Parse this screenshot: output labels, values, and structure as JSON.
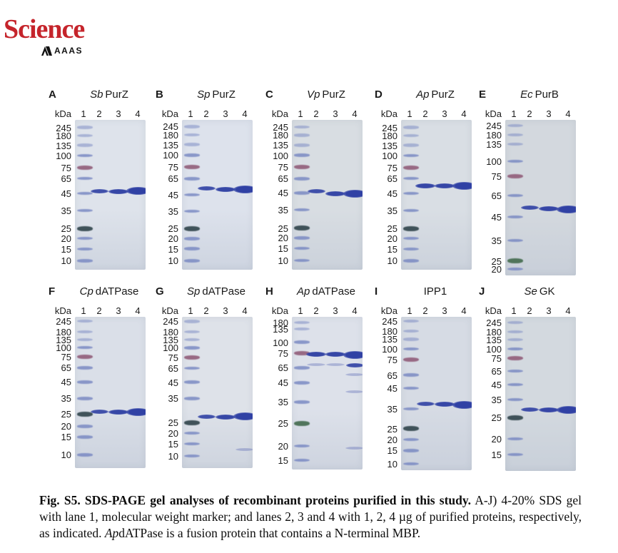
{
  "logo": {
    "title": "Science",
    "subtitle": "AAAS",
    "brand_color": "#c5242b"
  },
  "gel": {
    "units_label": "kDa",
    "lane_labels": [
      "1",
      "2",
      "3",
      "4"
    ],
    "colors": {
      "band_blue": "#3041a4",
      "ladder_blue": "#7585c1",
      "ladder_red": "#93607c",
      "ladder_dark": "#33474e",
      "ladder_green": "#466d51"
    },
    "panels": [
      {
        "id": "A",
        "organism": "Sb",
        "protein": "PurZ",
        "col": 0,
        "row": 0,
        "bg": "#dee3eb",
        "gel_height": 210,
        "ladder": [
          {
            "kda": "245",
            "f": 0.05
          },
          {
            "kda": "180",
            "f": 0.105
          },
          {
            "kda": "135",
            "f": 0.17
          },
          {
            "kda": "100",
            "f": 0.238
          },
          {
            "kda": "75",
            "f": 0.318,
            "c": "r"
          },
          {
            "kda": "65",
            "f": 0.39
          },
          {
            "kda": "45",
            "f": 0.49
          },
          {
            "kda": "35",
            "f": 0.605
          },
          {
            "kda": "25",
            "f": 0.724,
            "c": "d"
          },
          {
            "kda": "20",
            "f": 0.79
          },
          {
            "kda": "15",
            "f": 0.862
          },
          {
            "kda": "10",
            "f": 0.94
          }
        ],
        "bands": [
          {
            "lane": 2,
            "f": 0.478,
            "s": 1
          },
          {
            "lane": 3,
            "f": 0.478,
            "s": 2
          },
          {
            "lane": 4,
            "f": 0.475,
            "s": 3
          }
        ]
      },
      {
        "id": "B",
        "organism": "Sp",
        "protein": "PurZ",
        "col": 1,
        "row": 0,
        "bg": "#dde2ec",
        "gel_height": 210,
        "ladder": [
          {
            "kda": "245",
            "f": 0.045
          },
          {
            "kda": "180",
            "f": 0.1
          },
          {
            "kda": "135",
            "f": 0.165
          },
          {
            "kda": "100",
            "f": 0.235
          },
          {
            "kda": "75",
            "f": 0.315,
            "c": "r"
          },
          {
            "kda": "65",
            "f": 0.392
          },
          {
            "kda": "45",
            "f": 0.5
          },
          {
            "kda": "35",
            "f": 0.61
          },
          {
            "kda": "25",
            "f": 0.726,
            "c": "d"
          },
          {
            "kda": "20",
            "f": 0.792
          },
          {
            "kda": "15",
            "f": 0.86
          },
          {
            "kda": "10",
            "f": 0.94
          }
        ],
        "bands": [
          {
            "lane": 2,
            "f": 0.455,
            "s": 1
          },
          {
            "lane": 3,
            "f": 0.462,
            "s": 2
          },
          {
            "lane": 4,
            "f": 0.462,
            "s": 3
          }
        ]
      },
      {
        "id": "C",
        "organism": "Vp",
        "protein": "PurZ",
        "col": 2,
        "row": 0,
        "bg": "#d8dde2",
        "gel_height": 210,
        "ladder": [
          {
            "kda": "245",
            "f": 0.048
          },
          {
            "kda": "180",
            "f": 0.102
          },
          {
            "kda": "135",
            "f": 0.168
          },
          {
            "kda": "100",
            "f": 0.236
          },
          {
            "kda": "75",
            "f": 0.316,
            "c": "r"
          },
          {
            "kda": "65",
            "f": 0.392
          },
          {
            "kda": "45",
            "f": 0.488
          },
          {
            "kda": "35",
            "f": 0.6
          },
          {
            "kda": "25",
            "f": 0.722,
            "c": "d"
          },
          {
            "kda": "20",
            "f": 0.788
          },
          {
            "kda": "15",
            "f": 0.858
          },
          {
            "kda": "10",
            "f": 0.938
          }
        ],
        "bands": [
          {
            "lane": 2,
            "f": 0.478,
            "s": 1
          },
          {
            "lane": 3,
            "f": 0.495,
            "s": 2
          },
          {
            "lane": 4,
            "f": 0.495,
            "s": 3
          }
        ]
      },
      {
        "id": "D",
        "organism": "Ap",
        "protein": "PurZ",
        "col": 3,
        "row": 0,
        "bg": "#d9dee4",
        "gel_height": 210,
        "ladder": [
          {
            "kda": "245",
            "f": 0.05
          },
          {
            "kda": "180",
            "f": 0.105
          },
          {
            "kda": "135",
            "f": 0.17
          },
          {
            "kda": "100",
            "f": 0.238
          },
          {
            "kda": "75",
            "f": 0.318,
            "c": "r"
          },
          {
            "kda": "65",
            "f": 0.39
          },
          {
            "kda": "45",
            "f": 0.49
          },
          {
            "kda": "35",
            "f": 0.605
          },
          {
            "kda": "25",
            "f": 0.724,
            "c": "d"
          },
          {
            "kda": "20",
            "f": 0.79
          },
          {
            "kda": "15",
            "f": 0.862
          },
          {
            "kda": "10",
            "f": 0.94
          }
        ],
        "bands": [
          {
            "lane": 2,
            "f": 0.44,
            "s": 2
          },
          {
            "lane": 3,
            "f": 0.44,
            "s": 2
          },
          {
            "lane": 4,
            "f": 0.44,
            "s": 3
          }
        ]
      },
      {
        "id": "E",
        "organism": "Ec",
        "protein": "PurB",
        "col": 4,
        "row": 0,
        "bg": "#d3d8de",
        "gel_height": 218,
        "ladder": [
          {
            "kda": "245",
            "f": 0.037
          },
          {
            "kda": "180",
            "f": 0.096
          },
          {
            "kda": "135",
            "f": 0.156
          },
          {
            "kda": "100",
            "f": 0.266
          },
          {
            "kda": "75",
            "f": 0.362,
            "c": "r"
          },
          {
            "kda": "65",
            "f": 0.486
          },
          {
            "kda": "45",
            "f": 0.624
          },
          {
            "kda": "35",
            "f": 0.775
          },
          {
            "kda": "25",
            "f": 0.908,
            "c": "g"
          },
          {
            "kda": "20",
            "f": 0.959
          }
        ],
        "bands": [
          {
            "lane": 2,
            "f": 0.566,
            "s": 1
          },
          {
            "lane": 3,
            "f": 0.57,
            "s": 2
          },
          {
            "lane": 4,
            "f": 0.575,
            "s": 3
          }
        ]
      },
      {
        "id": "F",
        "organism": "Cp",
        "protein": "dATPase",
        "col": 0,
        "row": 1,
        "bg": "#dadfe8",
        "gel_height": 212,
        "ladder": [
          {
            "kda": "245",
            "f": 0.028
          },
          {
            "kda": "180",
            "f": 0.1
          },
          {
            "kda": "135",
            "f": 0.152
          },
          {
            "kda": "100",
            "f": 0.204
          },
          {
            "kda": "75",
            "f": 0.266,
            "c": "r"
          },
          {
            "kda": "65",
            "f": 0.337
          },
          {
            "kda": "45",
            "f": 0.431
          },
          {
            "kda": "35",
            "f": 0.539
          },
          {
            "kda": "25",
            "f": 0.642,
            "c": "d"
          },
          {
            "kda": "20",
            "f": 0.723
          },
          {
            "kda": "15",
            "f": 0.794
          },
          {
            "kda": "10",
            "f": 0.912
          }
        ],
        "bands": [
          {
            "lane": 2,
            "f": 0.625,
            "s": 1
          },
          {
            "lane": 3,
            "f": 0.63,
            "s": 2
          },
          {
            "lane": 4,
            "f": 0.628,
            "s": 3
          }
        ]
      },
      {
        "id": "G",
        "organism": "Sp",
        "protein": "dATPase",
        "col": 1,
        "row": 1,
        "bg": "#dee2e9",
        "gel_height": 212,
        "ladder": [
          {
            "kda": "245",
            "f": 0.03
          },
          {
            "kda": "180",
            "f": 0.098
          },
          {
            "kda": "135",
            "f": 0.152
          },
          {
            "kda": "100",
            "f": 0.205
          },
          {
            "kda": "75",
            "f": 0.268,
            "c": "r"
          },
          {
            "kda": "65",
            "f": 0.34
          },
          {
            "kda": "45",
            "f": 0.432
          },
          {
            "kda": "35",
            "f": 0.54
          },
          {
            "kda": "25",
            "f": 0.7,
            "c": "d"
          },
          {
            "kda": "20",
            "f": 0.77
          },
          {
            "kda": "15",
            "f": 0.84
          },
          {
            "kda": "10",
            "f": 0.92
          }
        ],
        "bands": [
          {
            "lane": 2,
            "f": 0.66,
            "s": 1
          },
          {
            "lane": 3,
            "f": 0.662,
            "s": 2
          },
          {
            "lane": 4,
            "f": 0.66,
            "s": 3
          },
          {
            "lane": 4,
            "f": 0.875,
            "s": 0
          }
        ]
      },
      {
        "id": "H",
        "organism": "Ap",
        "protein": "dATPase",
        "col": 2,
        "row": 1,
        "bg": "#dde1ea",
        "gel_height": 214,
        "ladder": [
          {
            "kda": "180",
            "f": 0.037
          },
          {
            "kda": "135",
            "f": 0.079
          },
          {
            "kda": "100",
            "f": 0.167
          },
          {
            "kda": "75",
            "f": 0.24,
            "c": "r"
          },
          {
            "kda": "65",
            "f": 0.334
          },
          {
            "kda": "45",
            "f": 0.432
          },
          {
            "kda": "35",
            "f": 0.558
          },
          {
            "kda": "25",
            "f": 0.698,
            "c": "g"
          },
          {
            "kda": "20",
            "f": 0.846
          },
          {
            "kda": "15",
            "f": 0.939
          }
        ],
        "bands": [
          {
            "lane": 2,
            "f": 0.247,
            "s": 2
          },
          {
            "lane": 3,
            "f": 0.247,
            "s": 2
          },
          {
            "lane": 4,
            "f": 0.25,
            "s": 3
          },
          {
            "lane": 2,
            "f": 0.315,
            "s": 0
          },
          {
            "lane": 3,
            "f": 0.315,
            "s": 0
          },
          {
            "lane": 4,
            "f": 0.32,
            "s": 1
          },
          {
            "lane": 4,
            "f": 0.38,
            "s": 0
          },
          {
            "lane": 4,
            "f": 0.49,
            "s": 0
          },
          {
            "lane": 4,
            "f": 0.86,
            "s": 0
          }
        ]
      },
      {
        "id": "I",
        "organism": "",
        "protein": "IPP1",
        "col": 3,
        "row": 1,
        "bg": "#d6dbe4",
        "gel_height": 215,
        "ladder": [
          {
            "kda": "245",
            "f": 0.028
          },
          {
            "kda": "180",
            "f": 0.092
          },
          {
            "kda": "135",
            "f": 0.146
          },
          {
            "kda": "100",
            "f": 0.21
          },
          {
            "kda": "75",
            "f": 0.278,
            "c": "r"
          },
          {
            "kda": "65",
            "f": 0.38
          },
          {
            "kda": "45",
            "f": 0.465
          },
          {
            "kda": "35",
            "f": 0.6
          },
          {
            "kda": "25",
            "f": 0.728,
            "c": "d"
          },
          {
            "kda": "20",
            "f": 0.8
          },
          {
            "kda": "15",
            "f": 0.872
          },
          {
            "kda": "10",
            "f": 0.958
          }
        ],
        "bands": [
          {
            "lane": 2,
            "f": 0.567,
            "s": 1
          },
          {
            "lane": 3,
            "f": 0.57,
            "s": 2
          },
          {
            "lane": 4,
            "f": 0.573,
            "s": 3
          }
        ]
      },
      {
        "id": "J",
        "organism": "Se",
        "protein": "GK",
        "col": 4,
        "row": 1,
        "bg": "#d3d9df",
        "gel_height": 216,
        "ladder": [
          {
            "kda": "245",
            "f": 0.037
          },
          {
            "kda": "180",
            "f": 0.097
          },
          {
            "kda": "135",
            "f": 0.148
          },
          {
            "kda": "100",
            "f": 0.208
          },
          {
            "kda": "75",
            "f": 0.269,
            "c": "r"
          },
          {
            "kda": "65",
            "f": 0.352
          },
          {
            "kda": "45",
            "f": 0.44
          },
          {
            "kda": "35",
            "f": 0.537
          },
          {
            "kda": "25",
            "f": 0.653,
            "c": "d"
          },
          {
            "kda": "20",
            "f": 0.792
          },
          {
            "kda": "15",
            "f": 0.893
          }
        ],
        "bands": [
          {
            "lane": 2,
            "f": 0.6,
            "s": 1
          },
          {
            "lane": 3,
            "f": 0.602,
            "s": 2
          },
          {
            "lane": 4,
            "f": 0.603,
            "s": 3
          }
        ]
      }
    ]
  },
  "caption": {
    "bold": "Fig. S5. SDS-PAGE gel analyses of recombinant proteins purified in this study.",
    "text_1": " A-J) 4-20% SDS gel with lane 1, molecular weight marker; and lanes 2, 3 and 4 with 1, 2, 4 µg of purified proteins, respectively, as indicated. ",
    "italic": "Ap",
    "text_2": "dATPase is a fusion protein that contains a N-terminal MBP."
  }
}
